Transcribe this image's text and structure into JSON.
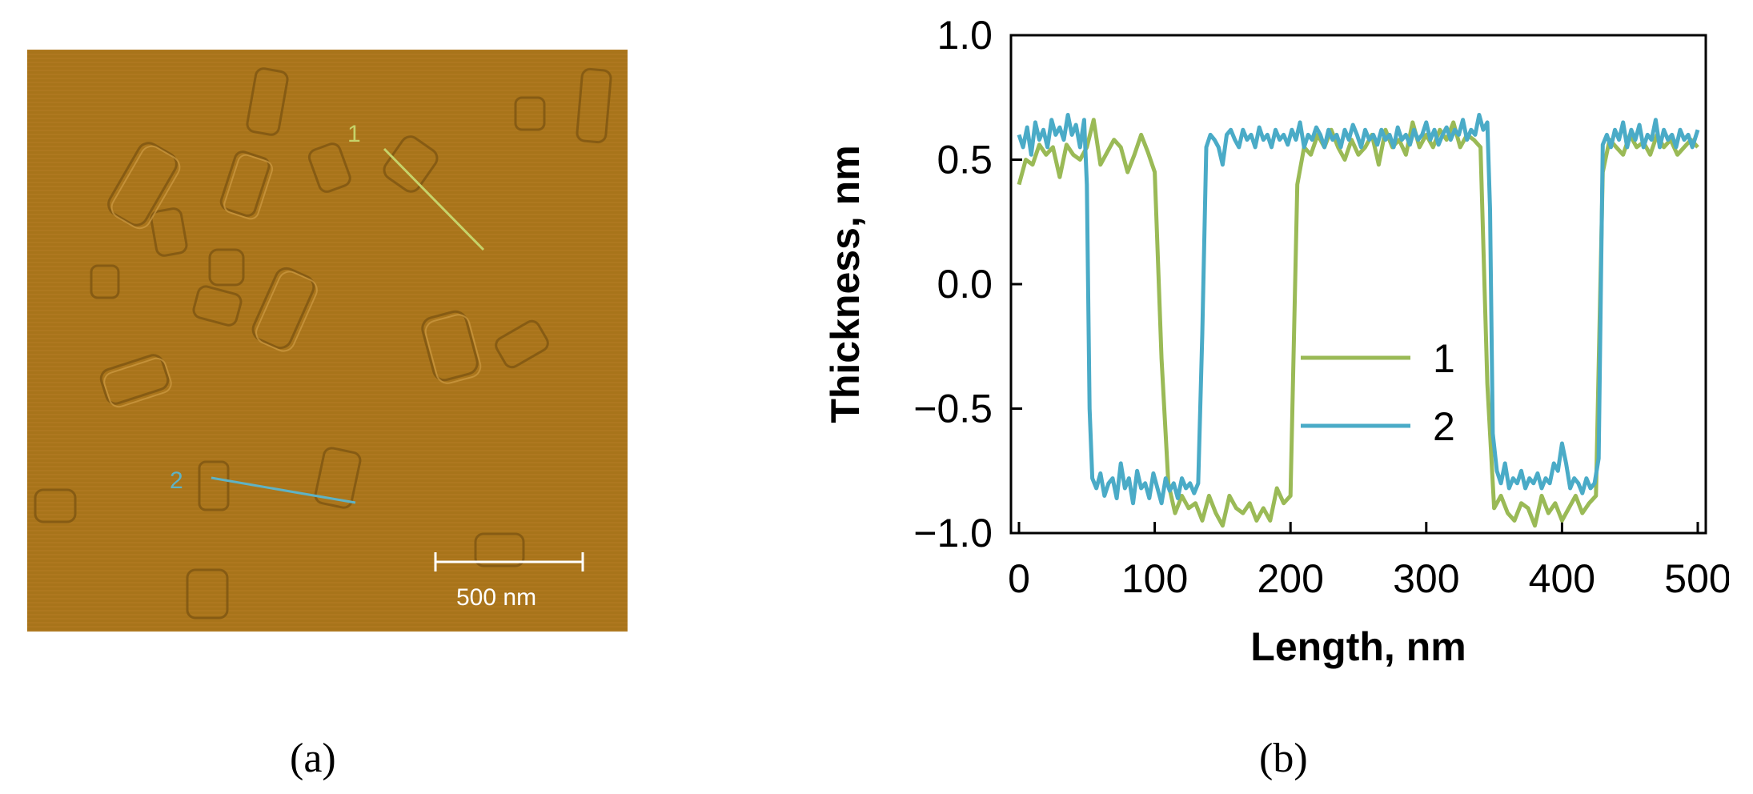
{
  "panel_a": {
    "line1_label": "1",
    "line2_label": "2",
    "scale_bar_label": "500 nm",
    "caption": "(a)",
    "colors": {
      "background": "#a8741a",
      "line1": "#c6d36a",
      "line2": "#5fb3c5",
      "scale_bar": "#ffffff"
    }
  },
  "panel_b": {
    "caption": "(b)"
  },
  "chart_data": {
    "type": "line",
    "title": "",
    "xlabel": "Length, nm",
    "ylabel": "Thickness, nm",
    "xlim": [
      0,
      500
    ],
    "ylim": [
      -1.0,
      1.0
    ],
    "xticks": [
      0,
      100,
      200,
      300,
      400,
      500
    ],
    "xtick_labels": [
      "0",
      "100",
      "200",
      "300",
      "400",
      "500"
    ],
    "yticks": [
      1.0,
      0.5,
      0.0,
      -0.5,
      -1.0
    ],
    "ytick_labels": [
      "1.0",
      "0.5",
      "0.0",
      "−0.5",
      "−1.0"
    ],
    "grid": false,
    "legend_position": "center",
    "series": [
      {
        "name": "1",
        "color": "#9aba56",
        "x": [
          0,
          5,
          10,
          15,
          20,
          25,
          30,
          35,
          40,
          45,
          50,
          55,
          60,
          65,
          70,
          75,
          80,
          85,
          90,
          95,
          100,
          105,
          110,
          115,
          120,
          125,
          130,
          135,
          140,
          145,
          150,
          155,
          160,
          165,
          170,
          175,
          180,
          185,
          190,
          195,
          200,
          205,
          210,
          215,
          220,
          225,
          230,
          235,
          240,
          245,
          250,
          255,
          260,
          265,
          270,
          275,
          280,
          285,
          290,
          295,
          300,
          305,
          310,
          315,
          320,
          325,
          330,
          335,
          340,
          345,
          350,
          355,
          360,
          365,
          370,
          375,
          380,
          385,
          390,
          395,
          400,
          405,
          410,
          415,
          420,
          425,
          430,
          435,
          440,
          445,
          450,
          455,
          460,
          465,
          470,
          475,
          480,
          485,
          490,
          495,
          500
        ],
        "y": [
          0.4,
          0.5,
          0.48,
          0.56,
          0.52,
          0.55,
          0.43,
          0.56,
          0.52,
          0.5,
          0.55,
          0.66,
          0.48,
          0.53,
          0.58,
          0.55,
          0.45,
          0.52,
          0.6,
          0.53,
          0.45,
          -0.3,
          -0.8,
          -0.92,
          -0.85,
          -0.9,
          -0.88,
          -0.95,
          -0.85,
          -0.92,
          -0.97,
          -0.85,
          -0.9,
          -0.92,
          -0.88,
          -0.95,
          -0.9,
          -0.95,
          -0.82,
          -0.88,
          -0.85,
          0.4,
          0.55,
          0.52,
          0.6,
          0.55,
          0.62,
          0.55,
          0.5,
          0.58,
          0.52,
          0.55,
          0.6,
          0.48,
          0.62,
          0.55,
          0.58,
          0.52,
          0.65,
          0.55,
          0.6,
          0.55,
          0.62,
          0.58,
          0.65,
          0.55,
          0.6,
          0.58,
          0.55,
          -0.4,
          -0.9,
          -0.85,
          -0.92,
          -0.95,
          -0.88,
          -0.9,
          -0.97,
          -0.85,
          -0.92,
          -0.88,
          -0.95,
          -0.9,
          -0.85,
          -0.92,
          -0.88,
          -0.85,
          0.45,
          0.58,
          0.55,
          0.52,
          0.6,
          0.55,
          0.57,
          0.52,
          0.6,
          0.55,
          0.58,
          0.52,
          0.55,
          0.58,
          0.55
        ]
      },
      {
        "name": "2",
        "color": "#4aabc7",
        "x": [
          0,
          3,
          6,
          9,
          12,
          15,
          18,
          21,
          24,
          27,
          30,
          33,
          36,
          39,
          42,
          45,
          48,
          50,
          52,
          54,
          57,
          60,
          63,
          66,
          69,
          72,
          75,
          78,
          81,
          84,
          87,
          90,
          93,
          96,
          99,
          102,
          105,
          108,
          111,
          114,
          117,
          120,
          123,
          126,
          129,
          132,
          135,
          138,
          141,
          144,
          147,
          150,
          153,
          156,
          159,
          162,
          165,
          168,
          171,
          174,
          177,
          180,
          183,
          186,
          189,
          192,
          195,
          198,
          201,
          204,
          207,
          210,
          213,
          216,
          219,
          222,
          225,
          228,
          231,
          234,
          237,
          240,
          243,
          246,
          249,
          252,
          255,
          258,
          261,
          264,
          267,
          270,
          273,
          276,
          279,
          282,
          285,
          288,
          291,
          294,
          297,
          300,
          303,
          306,
          309,
          312,
          315,
          318,
          321,
          324,
          327,
          330,
          333,
          336,
          339,
          342,
          345,
          347,
          349,
          352,
          355,
          358,
          361,
          364,
          367,
          370,
          373,
          376,
          379,
          382,
          385,
          388,
          391,
          394,
          397,
          400,
          403,
          406,
          409,
          412,
          415,
          418,
          421,
          424,
          427,
          430,
          433,
          436,
          439,
          442,
          445,
          448,
          451,
          454,
          457,
          460,
          463,
          466,
          469,
          472,
          475,
          478,
          481,
          484,
          487,
          490,
          493,
          496,
          500
        ],
        "y": [
          0.6,
          0.55,
          0.63,
          0.52,
          0.65,
          0.58,
          0.62,
          0.55,
          0.66,
          0.6,
          0.63,
          0.58,
          0.68,
          0.6,
          0.64,
          0.55,
          0.66,
          0.4,
          -0.5,
          -0.78,
          -0.82,
          -0.76,
          -0.85,
          -0.8,
          -0.78,
          -0.86,
          -0.72,
          -0.82,
          -0.78,
          -0.88,
          -0.75,
          -0.82,
          -0.8,
          -0.86,
          -0.76,
          -0.82,
          -0.88,
          -0.78,
          -0.83,
          -0.8,
          -0.86,
          -0.78,
          -0.82,
          -0.8,
          -0.84,
          -0.8,
          -0.2,
          0.55,
          0.6,
          0.58,
          0.55,
          0.48,
          0.6,
          0.62,
          0.58,
          0.55,
          0.62,
          0.58,
          0.6,
          0.55,
          0.63,
          0.58,
          0.6,
          0.55,
          0.62,
          0.58,
          0.6,
          0.56,
          0.62,
          0.58,
          0.65,
          0.55,
          0.6,
          0.58,
          0.63,
          0.6,
          0.55,
          0.62,
          0.58,
          0.6,
          0.55,
          0.62,
          0.58,
          0.64,
          0.6,
          0.55,
          0.62,
          0.58,
          0.6,
          0.56,
          0.62,
          0.58,
          0.6,
          0.55,
          0.63,
          0.58,
          0.6,
          0.56,
          0.62,
          0.58,
          0.6,
          0.65,
          0.58,
          0.62,
          0.56,
          0.6,
          0.63,
          0.58,
          0.62,
          0.6,
          0.66,
          0.58,
          0.62,
          0.6,
          0.68,
          0.62,
          0.65,
          0.3,
          -0.6,
          -0.75,
          -0.8,
          -0.72,
          -0.82,
          -0.78,
          -0.8,
          -0.75,
          -0.82,
          -0.78,
          -0.8,
          -0.76,
          -0.82,
          -0.78,
          -0.8,
          -0.72,
          -0.75,
          -0.64,
          -0.72,
          -0.82,
          -0.78,
          -0.8,
          -0.84,
          -0.78,
          -0.82,
          -0.8,
          -0.7,
          0.56,
          0.6,
          0.55,
          0.62,
          0.58,
          0.65,
          0.55,
          0.62,
          0.58,
          0.64,
          0.55,
          0.6,
          0.58,
          0.66,
          0.55,
          0.62,
          0.58,
          0.6,
          0.55,
          0.62,
          0.58,
          0.6,
          0.55,
          0.62
        ]
      }
    ]
  }
}
